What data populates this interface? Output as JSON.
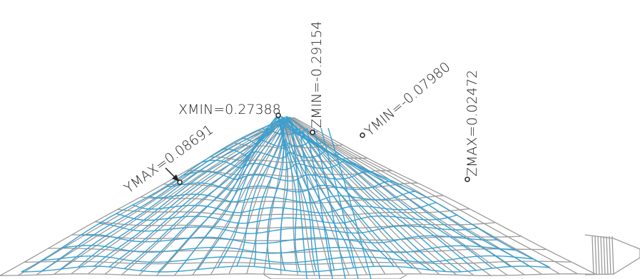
{
  "labels": {
    "xmin": "XMIN=0.27388",
    "ymax": "YMAX=0.08691",
    "zmin": "ZMIN=-0.29154",
    "ymin": "YMIN=-0.07980",
    "zmax": "ZMAX=0.02472"
  }
}
